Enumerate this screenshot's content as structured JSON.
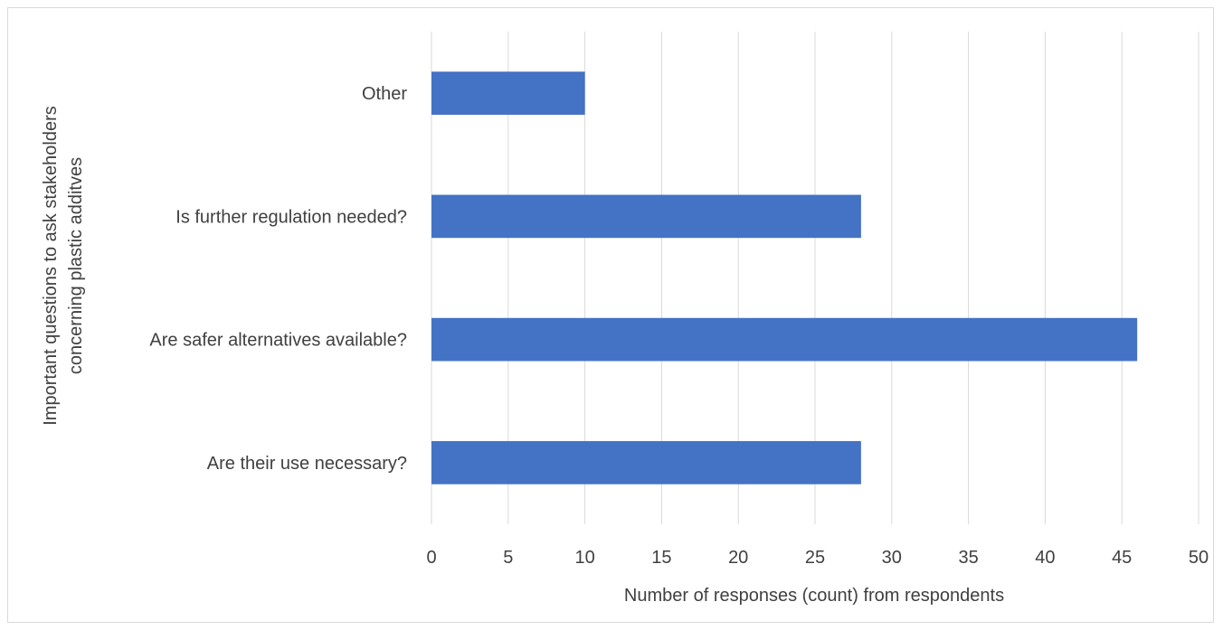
{
  "chart_data": {
    "type": "bar",
    "orientation": "horizontal",
    "categories": [
      "Are their use necessary?",
      "Are safer alternatives available?",
      "Is further regulation needed?",
      "Other"
    ],
    "values": [
      28,
      46,
      28,
      10
    ],
    "xlabel": "Number of responses (count) from respondents",
    "ylabel_lines": [
      "Important questions to ask stakeholders",
      "concerning plastic additves"
    ],
    "xlim": [
      0,
      50
    ],
    "xticks": [
      0,
      5,
      10,
      15,
      20,
      25,
      30,
      35,
      40,
      45,
      50
    ],
    "grid": true,
    "legend": "none",
    "bar_color": "#4472C4"
  }
}
